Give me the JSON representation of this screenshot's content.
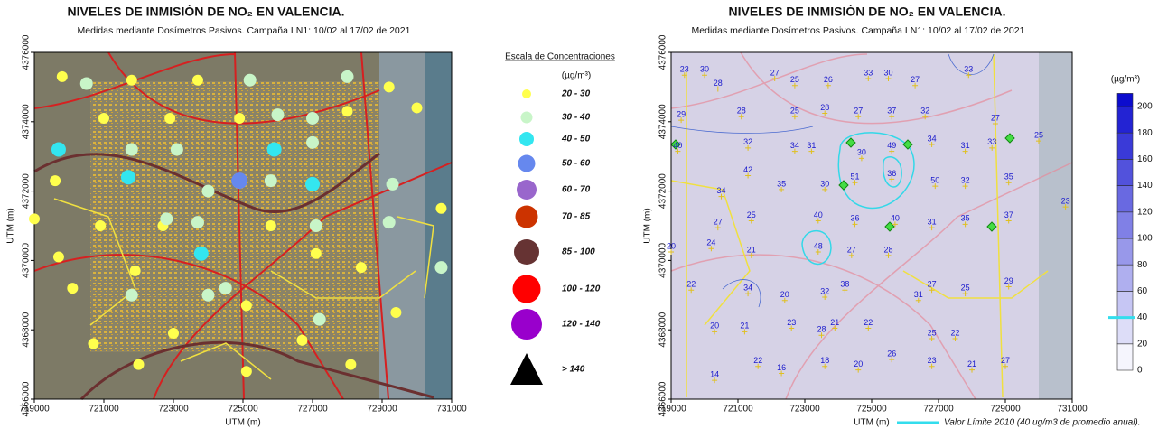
{
  "chart_data": [
    {
      "type": "scatter",
      "title": "NIVELES DE INMISIÓN DE NO₂ EN VALENCIA.",
      "subtitle": "Medidas mediante Dosímetros Pasivos.  Campaña LN1:   10/02 al 17/02 de 2021",
      "x_label": "UTM (m)",
      "y_label": "UTM (m)",
      "xlim": [
        719000,
        731000
      ],
      "ylim": [
        4366000,
        4376000
      ],
      "xticks": [
        719000,
        721000,
        723000,
        725000,
        727000,
        729000,
        731000
      ],
      "yticks": [
        4366000,
        4368000,
        4370000,
        4372000,
        4374000,
        4376000
      ],
      "legend_title": "Escala de Concentraciones",
      "legend_unit": "(µg/m³)",
      "series": [
        {
          "name": "20 - 30",
          "color": "#ffff4d",
          "x": [
            719800,
            721800,
            723700,
            722900,
            724900,
            728000,
            729200,
            730000,
            721000,
            719600,
            719700,
            720900,
            722700,
            725800,
            727100,
            728400,
            729400,
            720100,
            721900,
            725100,
            726700,
            723000,
            720700,
            722000,
            725100,
            728100,
            730700,
            719000
          ],
          "y": [
            4375300,
            4375200,
            4375200,
            4374100,
            4374100,
            4374300,
            4375000,
            4374400,
            4374100,
            4372300,
            4370100,
            4371000,
            4371000,
            4371000,
            4370200,
            4369800,
            4368500,
            4369200,
            4369700,
            4368700,
            4367700,
            4367900,
            4367600,
            4367000,
            4366800,
            4367000,
            4371500,
            4371200
          ]
        },
        {
          "name": "30 - 40",
          "color": "#c8f5c8",
          "x": [
            720500,
            725200,
            726000,
            727000,
            728000,
            721800,
            723100,
            724000,
            725800,
            727000,
            729300,
            722800,
            723700,
            727100,
            729200,
            721800,
            724000,
            724500,
            730700,
            727200
          ],
          "y": [
            4375100,
            4375200,
            4374200,
            4374100,
            4375300,
            4373200,
            4373200,
            4372000,
            4372300,
            4373400,
            4372200,
            4371200,
            4371100,
            4371000,
            4371100,
            4369000,
            4369000,
            4369200,
            4369800,
            4368300
          ]
        },
        {
          "name": "40 - 50",
          "color": "#33e6f0",
          "x": [
            719700,
            721700,
            725900,
            727000,
            723800
          ],
          "y": [
            4373200,
            4372400,
            4373200,
            4372200,
            4370200
          ]
        },
        {
          "name": "50 - 60",
          "color": "#6688ee",
          "x": [
            724900
          ],
          "y": [
            4372300
          ]
        },
        {
          "name": "60 - 70",
          "color": "#9966cc",
          "x": [],
          "y": []
        },
        {
          "name": "70 - 85",
          "color": "#cc3300",
          "x": [],
          "y": []
        },
        {
          "name": "85 - 100",
          "color": "#663333",
          "x": [],
          "y": []
        },
        {
          "name": "100 - 120",
          "color": "#ff0000",
          "x": [],
          "y": []
        },
        {
          "name": "120 - 140",
          "color": "#9900cc",
          "x": [],
          "y": []
        },
        {
          "name": "> 140",
          "color": "#000000",
          "x": [],
          "y": []
        }
      ]
    },
    {
      "type": "map-labels",
      "title": "NIVELES DE INMISIÓN DE NO₂ EN VALENCIA.",
      "subtitle": "Medidas mediante Dosímetros Pasivos.  Campaña LN1:   10/02 al 17/02 de 2021",
      "x_label": "UTM (m)",
      "y_label": "UTM (m)",
      "xlim": [
        719000,
        731000
      ],
      "ylim": [
        4366000,
        4376000
      ],
      "xticks": [
        719000,
        721000,
        723000,
        725000,
        727000,
        729000,
        731000
      ],
      "yticks": [
        4366000,
        4368000,
        4370000,
        4372000,
        4374000,
        4376000
      ],
      "values": [
        23,
        30,
        27,
        33,
        30,
        27,
        33,
        28,
        25,
        26,
        29,
        28,
        25,
        28,
        27,
        37,
        32,
        27,
        33,
        40,
        32,
        34,
        31,
        30,
        49,
        34,
        31,
        25,
        42,
        35,
        30,
        51,
        36,
        50,
        32,
        35,
        23,
        34,
        27,
        25,
        40,
        36,
        40,
        31,
        35,
        37,
        20,
        24,
        21,
        48,
        27,
        28,
        22,
        34,
        20,
        32,
        38,
        27,
        25,
        29,
        31,
        23,
        21,
        22,
        25,
        22,
        20,
        21,
        28,
        22,
        16,
        18,
        20,
        26,
        23,
        21,
        27,
        14
      ],
      "x": [
        719400,
        720000,
        722100,
        724900,
        725500,
        726300,
        727900,
        720400,
        722700,
        723700,
        719300,
        721100,
        722700,
        723600,
        724600,
        725600,
        726600,
        728700,
        728600,
        719200,
        721300,
        722700,
        723200,
        724700,
        725600,
        726800,
        727800,
        730000,
        721300,
        722300,
        723600,
        724500,
        725600,
        726900,
        727800,
        729100,
        730800,
        720500,
        720400,
        721400,
        723400,
        724500,
        725700,
        726800,
        727800,
        729100,
        719000,
        720200,
        721400,
        723400,
        724400,
        725500,
        719600,
        721300,
        722400,
        723600,
        724200,
        726800,
        727800,
        729100,
        726400,
        722600,
        723900,
        724900,
        726800,
        727500,
        720300,
        721200,
        723500,
        721600,
        722300,
        723600,
        724600,
        725600,
        726800,
        728000,
        729000,
        720300
      ],
      "y": [
        4375500,
        4375500,
        4375400,
        4375400,
        4375400,
        4375200,
        4375500,
        4375100,
        4375200,
        4375200,
        4374200,
        4374300,
        4374300,
        4374400,
        4374300,
        4374300,
        4374300,
        4374100,
        4373400,
        4373300,
        4373400,
        4373300,
        4373300,
        4373100,
        4373300,
        4373500,
        4373300,
        4373600,
        4372600,
        4372200,
        4372200,
        4372400,
        4372500,
        4372300,
        4372300,
        4372400,
        4371700,
        4372000,
        4371100,
        4371300,
        4371300,
        4371200,
        4371200,
        4371100,
        4371200,
        4371300,
        4370400,
        4370500,
        4370300,
        4370400,
        4370300,
        4370300,
        4369300,
        4369200,
        4369000,
        4369100,
        4369300,
        4369300,
        4369200,
        4369400,
        4369000,
        4368200,
        4368200,
        4368200,
        4367900,
        4367900,
        4368100,
        4368100,
        4368000,
        4367100,
        4366900,
        4367100,
        4367000,
        4367300,
        4367100,
        4367000,
        4367100,
        4366700
      ],
      "colorbar": {
        "label": "(µg/m³)",
        "lim": [
          0,
          210
        ],
        "ticks": [
          0,
          20,
          40,
          60,
          80,
          100,
          120,
          140,
          160,
          180,
          200
        ],
        "color": "#0000cc"
      },
      "limit": {
        "value": 40,
        "label": "Valor Límite 2010 (40 ug/m3 de promedio anual).",
        "color": "#33dded"
      }
    }
  ]
}
